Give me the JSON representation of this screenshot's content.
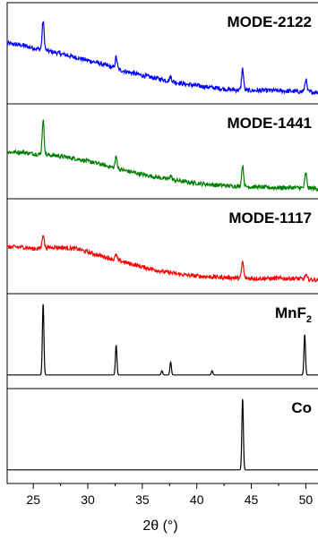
{
  "chart_data": {
    "type": "line",
    "xlabel": "2θ (°)",
    "x_tick_labels": [
      "25",
      "30",
      "35",
      "40",
      "45",
      "50"
    ],
    "xlim": [
      22.6,
      51.2
    ],
    "panels": [
      {
        "label": "MODE-2122",
        "color": "#0000ff",
        "series_type": "xrd-measured",
        "background": [
          [
            22.6,
            0.62
          ],
          [
            24,
            0.6
          ],
          [
            25,
            0.57
          ],
          [
            27,
            0.52
          ],
          [
            29,
            0.46
          ],
          [
            31,
            0.4
          ],
          [
            33,
            0.32
          ],
          [
            35,
            0.26
          ],
          [
            37,
            0.21
          ],
          [
            39,
            0.16
          ],
          [
            41,
            0.13
          ],
          [
            43,
            0.1
          ],
          [
            45,
            0.09
          ],
          [
            47,
            0.09
          ],
          [
            49,
            0.08
          ],
          [
            51.2,
            0.07
          ]
        ],
        "peaks": [
          {
            "pos": 25.9,
            "height": 0.33
          },
          {
            "pos": 32.6,
            "height": 0.13
          },
          {
            "pos": 37.6,
            "height": 0.05
          },
          {
            "pos": 44.2,
            "height": 0.24
          },
          {
            "pos": 50.0,
            "height": 0.14
          }
        ]
      },
      {
        "label": "MODE-1441",
        "color": "#008000",
        "series_type": "xrd-measured",
        "background": [
          [
            22.6,
            0.5
          ],
          [
            24,
            0.5
          ],
          [
            25,
            0.48
          ],
          [
            27,
            0.46
          ],
          [
            29,
            0.42
          ],
          [
            31,
            0.36
          ],
          [
            33,
            0.29
          ],
          [
            35,
            0.23
          ],
          [
            37,
            0.18
          ],
          [
            39,
            0.14
          ],
          [
            41,
            0.11
          ],
          [
            43,
            0.09
          ],
          [
            45,
            0.08
          ],
          [
            47,
            0.07
          ],
          [
            49,
            0.07
          ],
          [
            51.2,
            0.06
          ]
        ],
        "peaks": [
          {
            "pos": 25.9,
            "height": 0.42
          },
          {
            "pos": 32.6,
            "height": 0.14
          },
          {
            "pos": 37.6,
            "height": 0.05
          },
          {
            "pos": 44.2,
            "height": 0.26
          },
          {
            "pos": 50.0,
            "height": 0.18
          }
        ]
      },
      {
        "label": "MODE-1117",
        "color": "#ff0000",
        "series_type": "xrd-measured",
        "background": [
          [
            22.6,
            0.5
          ],
          [
            24,
            0.5
          ],
          [
            25,
            0.48
          ],
          [
            27,
            0.5
          ],
          [
            29,
            0.48
          ],
          [
            31,
            0.4
          ],
          [
            33,
            0.33
          ],
          [
            35,
            0.26
          ],
          [
            37,
            0.2
          ],
          [
            39,
            0.16
          ],
          [
            41,
            0.14
          ],
          [
            43,
            0.13
          ],
          [
            45,
            0.12
          ],
          [
            47,
            0.12
          ],
          [
            49,
            0.12
          ],
          [
            51.2,
            0.1
          ]
        ],
        "peaks": [
          {
            "pos": 25.9,
            "height": 0.17
          },
          {
            "pos": 32.6,
            "height": 0.06
          },
          {
            "pos": 44.2,
            "height": 0.2
          },
          {
            "pos": 50.0,
            "height": 0.05
          }
        ]
      },
      {
        "label": "MnF",
        "label_subscript": "2",
        "color": "#000000",
        "series_type": "reference-pattern",
        "peaks": [
          {
            "pos": 25.9,
            "height": 1.0
          },
          {
            "pos": 32.6,
            "height": 0.42
          },
          {
            "pos": 36.8,
            "height": 0.06
          },
          {
            "pos": 37.6,
            "height": 0.18
          },
          {
            "pos": 41.4,
            "height": 0.06
          },
          {
            "pos": 49.9,
            "height": 0.57
          }
        ]
      },
      {
        "label": "Co",
        "color": "#000000",
        "series_type": "reference-pattern",
        "peaks": [
          {
            "pos": 44.2,
            "height": 1.0
          }
        ]
      }
    ]
  }
}
